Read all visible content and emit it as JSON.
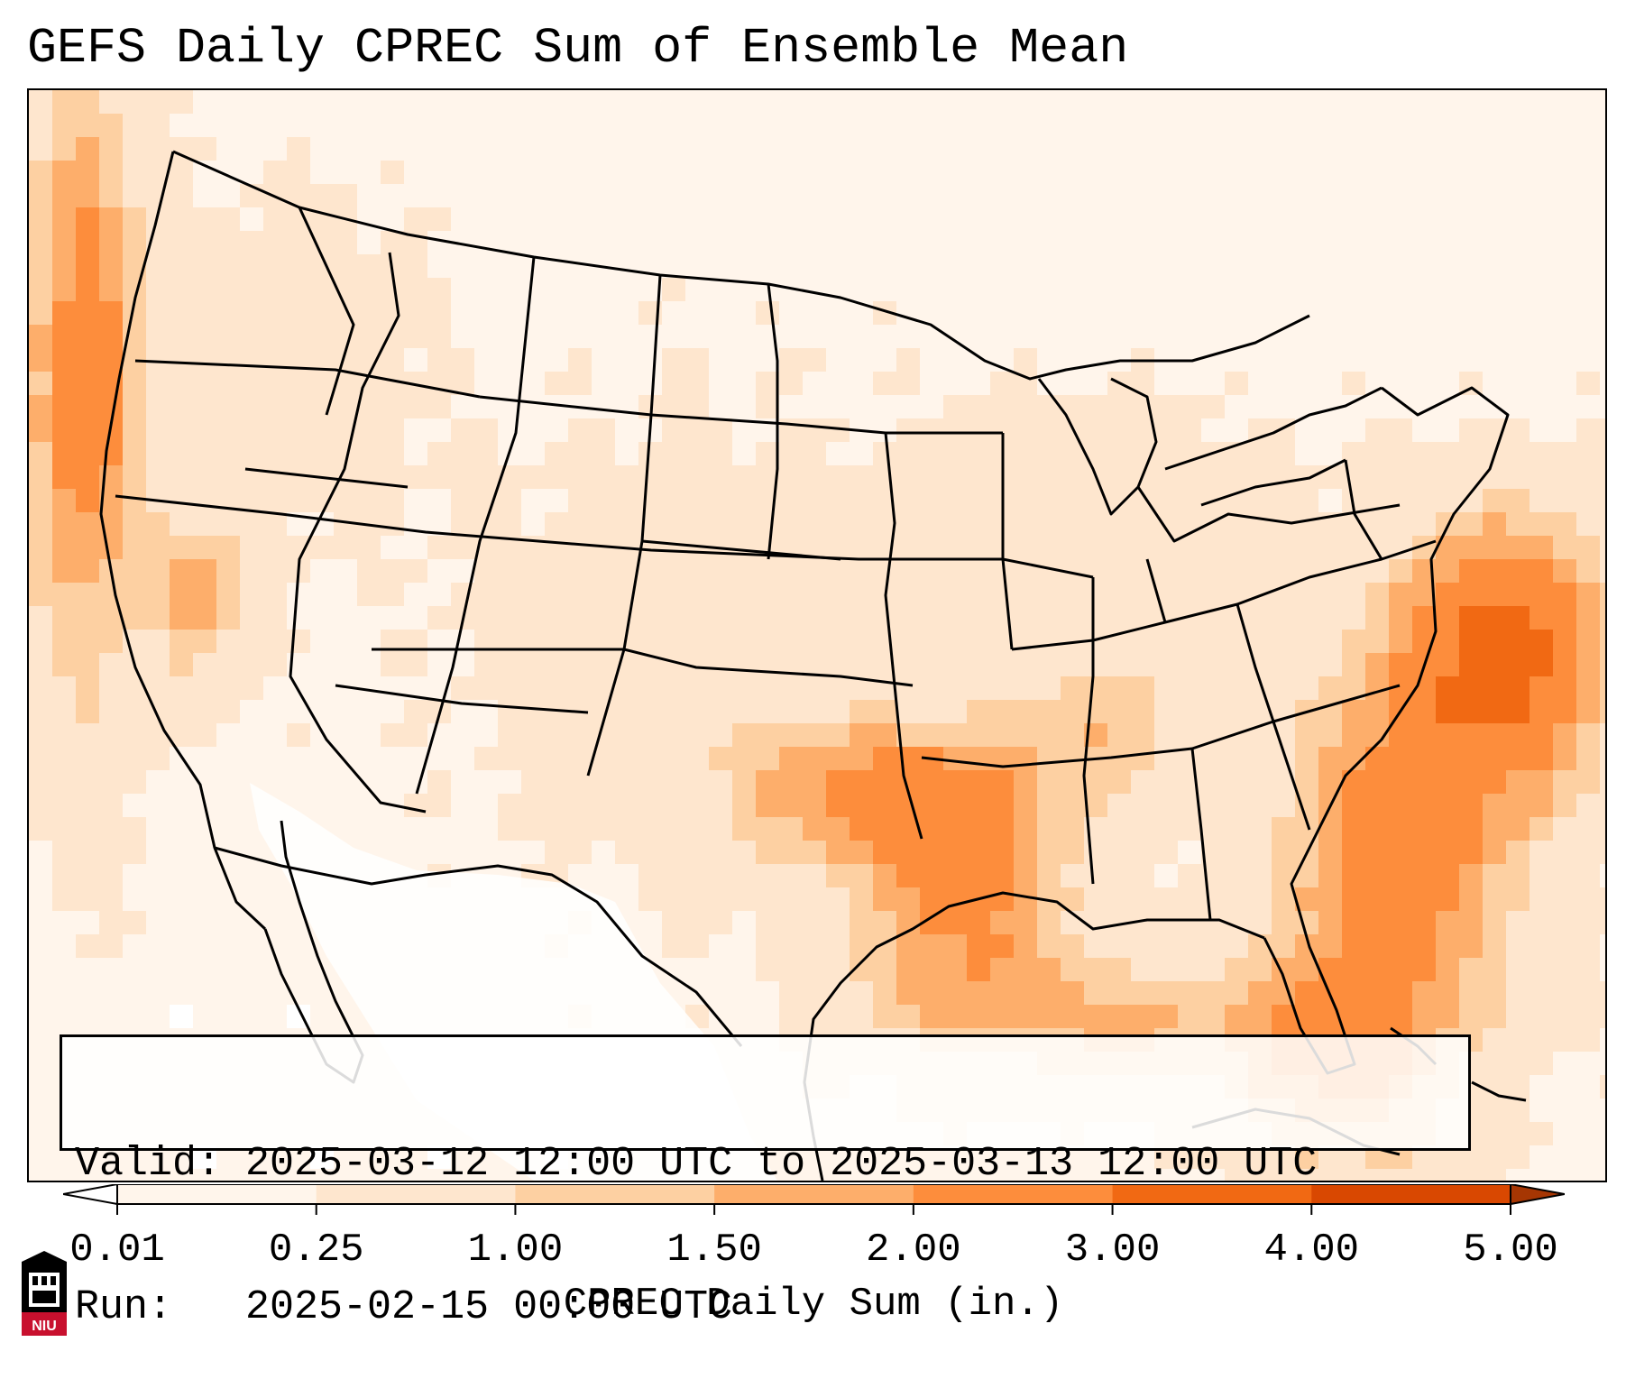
{
  "title": "GEFS Daily CPREC Sum of Ensemble Mean",
  "info": {
    "valid_line": "Valid: 2025-03-12 12:00 UTC to 2025-03-13 12:00 UTC",
    "run_line": "Run:   2025-02-15 00:00 UTC"
  },
  "colorbar": {
    "label": "CPREC Daily Sum (in.)",
    "ticks": [
      "0.01",
      "0.25",
      "1.00",
      "1.50",
      "2.00",
      "3.00",
      "4.00",
      "5.00"
    ],
    "colors": [
      "#fff5eb",
      "#fee6ce",
      "#fdd0a2",
      "#fdae6b",
      "#fd8d3c",
      "#f16913",
      "#d94801"
    ],
    "under_color": "#ffffff",
    "over_color": "#a63603",
    "extend": "both"
  },
  "logo": {
    "text": "NIU",
    "colors": [
      "#c8102e",
      "#000000"
    ]
  }
}
